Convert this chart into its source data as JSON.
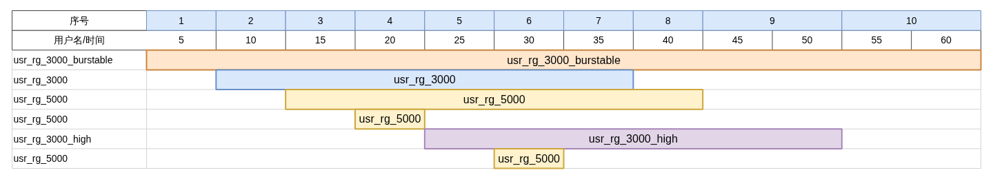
{
  "chart_data": {
    "type": "bar",
    "orientation": "horizontal",
    "xlabel": "用户名/时间",
    "x2label": "序号",
    "categories": [
      "usr_rg_3000_burstable",
      "usr_rg_3000",
      "usr_rg_5000",
      "usr_rg_5000",
      "usr_rg_3000_high",
      "usr_rg_5000"
    ],
    "base": [
      2.5,
      7.5,
      12.5,
      17.5,
      22.5,
      27.5
    ],
    "values": [
      60,
      30,
      30,
      5,
      30,
      5
    ],
    "colors": [
      "#ffe6cc",
      "#dae8fc",
      "#fff2cc",
      "#fff2cc",
      "#e1d5e7",
      "#fff2cc"
    ],
    "xlim": [
      2.5,
      62.5
    ],
    "xticks": [
      5,
      10,
      15,
      20,
      25,
      30,
      35,
      40,
      45,
      50,
      55,
      60
    ],
    "annotations": [
      "1",
      "2",
      "3",
      "4",
      "5",
      "6",
      "7",
      "8",
      "9",
      "10"
    ]
  }
}
